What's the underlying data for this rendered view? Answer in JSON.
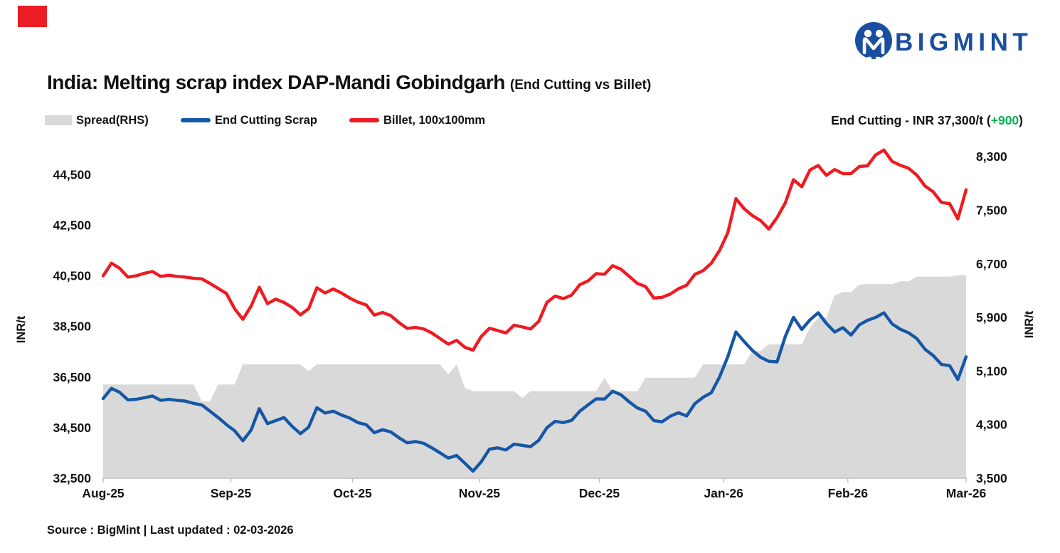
{
  "logo": {
    "text": "BIGMINT",
    "color": "#1A4FA0"
  },
  "corner_accent_color": "#EC1C24",
  "header": {
    "title": "India: Melting scrap index DAP-Mandi Gobindgarh",
    "subtitle": "(End Cutting vs Billet)"
  },
  "legend": {
    "items": [
      {
        "label": "Spread(RHS)",
        "swatch": "area",
        "color": "#D9D9D9"
      },
      {
        "label": "End Cutting Scrap",
        "swatch": "line",
        "color": "#1557A6"
      },
      {
        "label": "Billet, 100x100mm",
        "swatch": "line",
        "color": "#EE1B22"
      }
    ]
  },
  "annotation": {
    "prefix": "End Cutting - INR 37,300/t (",
    "delta": "+900",
    "suffix": ")",
    "delta_color": "#00B050"
  },
  "source_note": "Source : BigMint | Last updated : 02-03-2026",
  "chart_data": {
    "type": "line",
    "title": "India: Melting scrap index DAP-Mandi Gobindgarh (End Cutting vs Billet)",
    "x_axis": {
      "tick_labels": [
        "Aug-25",
        "Sep-25",
        "Oct-25",
        "Nov-25",
        "Dec-25",
        "Jan-26",
        "Feb-26",
        "Mar-26"
      ],
      "positions": [
        0,
        0.148,
        0.289,
        0.436,
        0.575,
        0.719,
        0.863,
        1
      ]
    },
    "left_axis": {
      "label": "INR/t",
      "min": 32500,
      "max": 46000,
      "tick_start": 32500,
      "tick_step": 2000,
      "tick_count": 7
    },
    "right_axis": {
      "label": "INR/t",
      "min": 3500,
      "max": 8600,
      "tick_start": 3500,
      "tick_step": 800,
      "tick_count": 7
    },
    "grid": false,
    "legend_position": "top-left",
    "series": [
      {
        "name": "Spread(RHS)",
        "type": "area",
        "axis": "right",
        "color": "#D9D9D9",
        "values": [
          4900,
          4900,
          4900,
          4900,
          4900,
          4900,
          4900,
          4900,
          4900,
          4900,
          4900,
          4900,
          4650,
          4650,
          4900,
          4900,
          4900,
          5200,
          5200,
          5200,
          5200,
          5200,
          5200,
          5200,
          5200,
          5100,
          5200,
          5200,
          5200,
          5200,
          5200,
          5200,
          5200,
          5200,
          5200,
          5200,
          5200,
          5200,
          5200,
          5200,
          5200,
          5200,
          5050,
          5200,
          4850,
          4800,
          4800,
          4800,
          4800,
          4800,
          4800,
          4700,
          4800,
          4800,
          4800,
          4800,
          4800,
          4800,
          4800,
          4800,
          4800,
          5000,
          4800,
          4800,
          4800,
          4800,
          5000,
          5000,
          5000,
          5000,
          5000,
          5000,
          5000,
          5200,
          5200,
          5200,
          5200,
          5200,
          5200,
          5400,
          5400,
          5500,
          5500,
          5500,
          5500,
          5500,
          5750,
          5900,
          5900,
          6230,
          6280,
          6280,
          6390,
          6400,
          6400,
          6400,
          6400,
          6440,
          6440,
          6510,
          6510,
          6510,
          6510,
          6510,
          6530,
          6530
        ]
      },
      {
        "name": "End Cutting Scrap",
        "type": "line",
        "axis": "left",
        "color": "#1557A6",
        "values": [
          35650,
          36050,
          35900,
          35600,
          35620,
          35680,
          35750,
          35580,
          35620,
          35580,
          35550,
          35460,
          35400,
          35150,
          34900,
          34620,
          34380,
          33980,
          34400,
          35250,
          34660,
          34780,
          34900,
          34550,
          34260,
          34520,
          35290,
          35080,
          35150,
          35000,
          34880,
          34700,
          34620,
          34300,
          34420,
          34330,
          34100,
          33900,
          33950,
          33880,
          33700,
          33500,
          33300,
          33400,
          33100,
          32780,
          33150,
          33650,
          33700,
          33620,
          33850,
          33800,
          33750,
          34000,
          34500,
          34750,
          34700,
          34790,
          35150,
          35400,
          35640,
          35630,
          35940,
          35800,
          35520,
          35280,
          35150,
          34780,
          34730,
          34950,
          35090,
          34960,
          35450,
          35700,
          35880,
          36500,
          37300,
          38280,
          37900,
          37550,
          37280,
          37120,
          37100,
          38100,
          38860,
          38380,
          38760,
          39040,
          38620,
          38280,
          38450,
          38160,
          38560,
          38740,
          38860,
          39040,
          38600,
          38390,
          38250,
          38020,
          37600,
          37350,
          37000,
          36950,
          36400,
          37300
        ]
      },
      {
        "name": "Billet, 100x100mm",
        "type": "line",
        "axis": "left",
        "color": "#EE1B22",
        "values": [
          40500,
          41000,
          40800,
          40450,
          40500,
          40600,
          40670,
          40480,
          40520,
          40480,
          40450,
          40400,
          40380,
          40200,
          40000,
          39800,
          39200,
          38780,
          39300,
          40050,
          39400,
          39580,
          39450,
          39250,
          38960,
          39200,
          40030,
          39820,
          39980,
          39820,
          39620,
          39460,
          39350,
          38950,
          39050,
          38930,
          38650,
          38420,
          38460,
          38400,
          38240,
          38020,
          37800,
          37950,
          37680,
          37560,
          38100,
          38430,
          38340,
          38240,
          38550,
          38480,
          38400,
          38700,
          39450,
          39700,
          39600,
          39740,
          40150,
          40300,
          40590,
          40560,
          40900,
          40760,
          40480,
          40200,
          40075,
          39620,
          39650,
          39780,
          39990,
          40130,
          40560,
          40700,
          41000,
          41500,
          42200,
          43550,
          43150,
          42880,
          42680,
          42350,
          42800,
          43380,
          44300,
          44020,
          44680,
          44860,
          44470,
          44700,
          44540,
          44540,
          44820,
          44850,
          45280,
          45470,
          45020,
          44870,
          44750,
          44480,
          44050,
          43820,
          43400,
          43350,
          42750,
          43900
        ]
      }
    ],
    "latest": {
      "end_cutting": "INR 37,300/t",
      "change": "+900"
    }
  }
}
